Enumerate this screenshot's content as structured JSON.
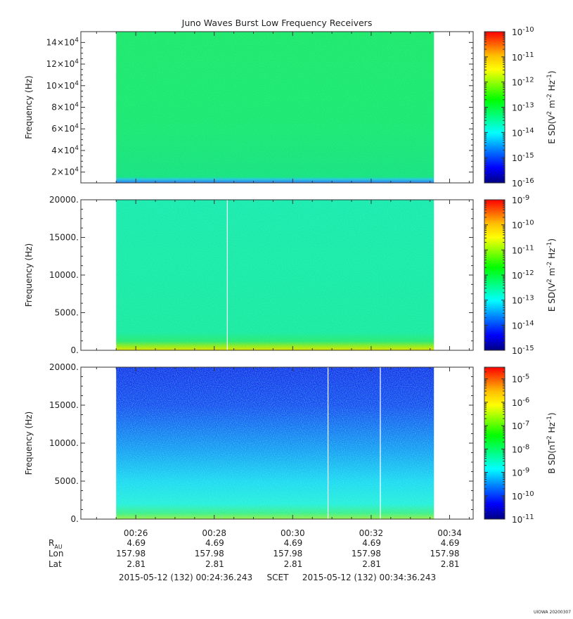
{
  "chart_data": {
    "type": "heatmap",
    "title": "Juno Waves Burst Low Frequency Receivers",
    "panels": [
      {
        "ylabel": "Frequency (Hz)",
        "ylim": [
          10000,
          150000
        ],
        "y_ticks": [
          {
            "value": 20000,
            "mant": "2×10",
            "exp": "4"
          },
          {
            "value": 40000,
            "mant": "4×10",
            "exp": "4"
          },
          {
            "value": 60000,
            "mant": "6×10",
            "exp": "4"
          },
          {
            "value": 80000,
            "mant": "8×10",
            "exp": "4"
          },
          {
            "value": 100000,
            "mant": "10×10",
            "exp": "4"
          },
          {
            "value": 120000,
            "mant": "12×10",
            "exp": "4"
          },
          {
            "value": 140000,
            "mant": "14×10",
            "exp": "4"
          }
        ],
        "colorbar_label": "E SD (V2 m-2 Hz-1)",
        "colorbar_label_parts": {
          "a": "E SD(V",
          "b": "2",
          "c": " m",
          "d": "-2",
          "e": " Hz",
          "f": "-1",
          "g": ")"
        },
        "colorbar_ticks": [
          {
            "exp": "-16"
          },
          {
            "exp": "-15"
          },
          {
            "exp": "-14"
          },
          {
            "exp": "-13"
          },
          {
            "exp": "-12"
          },
          {
            "exp": "-11"
          },
          {
            "exp": "-10"
          }
        ],
        "colorbar_scale": "log",
        "colorbar_range_exp": [
          -16,
          -10
        ],
        "background_level": "1e-13 to 1e-14 (green)",
        "data_gaps_time": []
      },
      {
        "ylabel": "Frequency (Hz)",
        "ylim": [
          0,
          20000
        ],
        "y_ticks": [
          {
            "value": 0,
            "label": "0."
          },
          {
            "value": 5000,
            "label": "5000."
          },
          {
            "value": 10000,
            "label": "10000."
          },
          {
            "value": 15000,
            "label": "15000."
          },
          {
            "value": 20000,
            "label": "20000."
          }
        ],
        "colorbar_label": "E SD (V2 m-2 Hz-1)",
        "colorbar_label_parts": {
          "a": "E SD(V",
          "b": "2",
          "c": " m",
          "d": "-2",
          "e": " Hz",
          "f": "-1",
          "g": ")"
        },
        "colorbar_ticks": [
          {
            "exp": "-15"
          },
          {
            "exp": "-14"
          },
          {
            "exp": "-13"
          },
          {
            "exp": "-12"
          },
          {
            "exp": "-11"
          },
          {
            "exp": "-10"
          },
          {
            "exp": "-9"
          }
        ],
        "colorbar_scale": "log",
        "colorbar_range_exp": [
          -15,
          -9
        ],
        "background_level": "1e-13 (cyan-green), enhanced below ~1000 Hz",
        "data_gaps_time": [
          "00:28:20"
        ]
      },
      {
        "ylabel": "Frequency (Hz)",
        "ylim": [
          0,
          20000
        ],
        "y_ticks": [
          {
            "value": 0,
            "label": "0."
          },
          {
            "value": 5000,
            "label": "5000."
          },
          {
            "value": 10000,
            "label": "10000."
          },
          {
            "value": 15000,
            "label": "15000."
          },
          {
            "value": 20000,
            "label": "20000."
          }
        ],
        "colorbar_label": "B SD (nT2 Hz-1)",
        "colorbar_label_parts": {
          "a": "B SD(nT",
          "b": "2",
          "c": "",
          "d": "",
          "e": " Hz",
          "f": "-1",
          "g": ")"
        },
        "colorbar_ticks": [
          {
            "exp": "-11"
          },
          {
            "exp": "-10"
          },
          {
            "exp": "-9"
          },
          {
            "exp": "-8"
          },
          {
            "exp": "-7"
          },
          {
            "exp": "-6"
          },
          {
            "exp": "-5"
          }
        ],
        "colorbar_scale": "log",
        "colorbar_range_exp": [
          -11,
          -4.5
        ],
        "background_level": "1e-10 (blue) at high freq, rising to 1e-9 below ~7000 Hz",
        "data_gaps_time": [
          "00:30:54",
          "00:32:14"
        ]
      }
    ],
    "x_axis": {
      "label": "SCET",
      "xlim": [
        "00:24:36",
        "00:34:36"
      ],
      "data_span": [
        "00:25:30",
        "00:33:36"
      ],
      "ticks": [
        "00:26",
        "00:28",
        "00:30",
        "00:32",
        "00:34"
      ],
      "minor_step_minutes": 0.5
    },
    "ephemeris": {
      "rows": [
        {
          "label": "R",
          "sub": "AU",
          "values": [
            "4.69",
            "4.69",
            "4.69",
            "4.69",
            "4.69"
          ]
        },
        {
          "label": "Lon",
          "sub": "",
          "values": [
            "157.98",
            "157.98",
            "157.98",
            "157.98",
            "157.98"
          ]
        },
        {
          "label": "Lat",
          "sub": "",
          "values": [
            "2.81",
            "2.81",
            "2.81",
            "2.81",
            "2.81"
          ]
        }
      ]
    },
    "time_range": {
      "start": "2015-05-12 (132) 00:24:36.243",
      "label": "SCET",
      "end": "2015-05-12 (132) 00:34:36.243"
    },
    "footer": "UIOWA 20200307"
  },
  "colors": {
    "spectrogram_green": "#22ee6e",
    "spectrogram_cyan": "#1ef0b4",
    "spectrogram_blue": "#1a3cf0",
    "colorbar": [
      "#00007f",
      "#0000ff",
      "#0080ff",
      "#00ffff",
      "#00ff80",
      "#00ff00",
      "#80ff00",
      "#ffff00",
      "#ffc000",
      "#ff6000",
      "#ff0000"
    ]
  }
}
